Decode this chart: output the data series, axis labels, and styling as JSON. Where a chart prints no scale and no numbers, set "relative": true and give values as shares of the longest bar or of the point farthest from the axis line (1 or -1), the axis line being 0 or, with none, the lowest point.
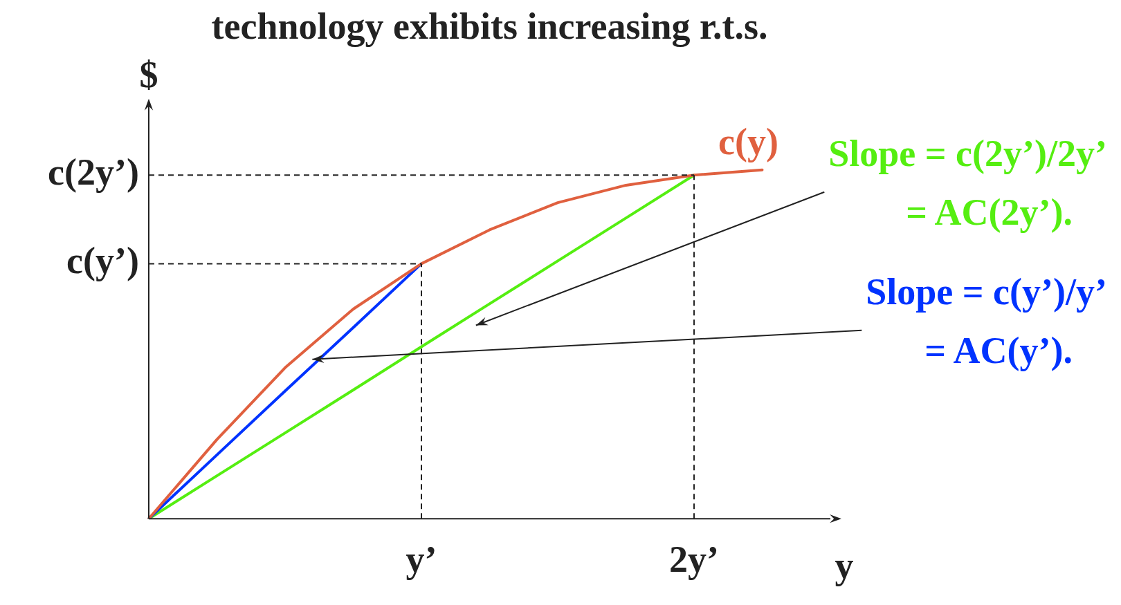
{
  "chart_data": {
    "type": "line",
    "title": "technology exhibits increasing r.t.s.",
    "xlabel": "y",
    "ylabel": "$",
    "relative": true,
    "categories": [
      null,
      null,
      null,
      null,
      "y’",
      null,
      null,
      null,
      "2y’",
      null,
      null
    ],
    "grid": false,
    "legend": false,
    "marker": "none",
    "series": [
      {
        "name": "c(y)",
        "color": "#e0603f",
        "values": [
          0,
          0.227,
          0.433,
          0.601,
          0.731,
          0.828,
          0.906,
          0.956,
          0.985,
          1,
          null
        ]
      },
      {
        "color": "#0033ff",
        "values": [
          0,
          0.183,
          0.366,
          0.548,
          0.731,
          null,
          null,
          null,
          null,
          null,
          null
        ]
      },
      {
        "color": "#55ee11",
        "values": [
          0,
          0.123,
          0.246,
          0.369,
          0.493,
          0.616,
          0.739,
          0.862,
          0.985,
          null,
          null
        ]
      }
    ],
    "ref_lines": [
      {
        "axis": "y",
        "value": 0.731,
        "label": "c(y’)",
        "color": "#222222",
        "line_style": "dashed"
      },
      {
        "axis": "y",
        "value": 0.985,
        "label": "c(2y’)",
        "color": "#222222",
        "line_style": "dashed"
      },
      {
        "axis": "x",
        "value": "y’",
        "color": "#222222",
        "line_style": "dashed"
      },
      {
        "axis": "x",
        "value": "2y’",
        "color": "#222222",
        "line_style": "dashed"
      }
    ],
    "annotations": [
      "Slope = c(2y’)/2y’\n= AC(2y’).",
      "Slope = c(y’)/y’\n= AC(y’)."
    ]
  }
}
